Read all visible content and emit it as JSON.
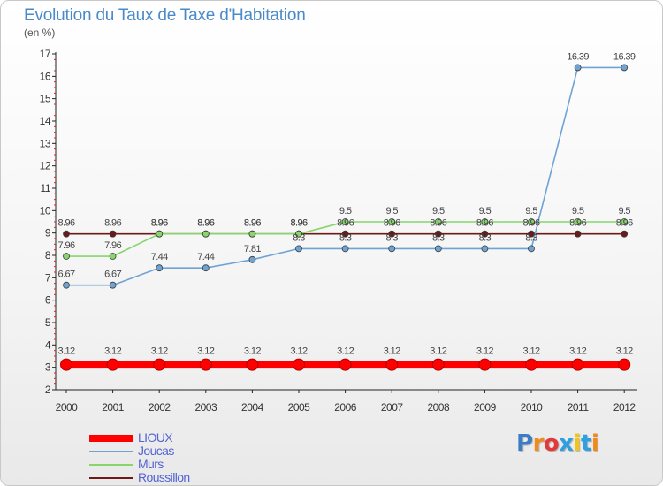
{
  "header": {
    "title": "Evolution du Taux de Taxe d'Habitation",
    "subtitle": "(en %)"
  },
  "chart_data": {
    "type": "line",
    "title": "Evolution du Taux de Taxe d'Habitation",
    "subtitle": "(en %)",
    "xlabel": "",
    "ylabel": "",
    "x": [
      2000,
      2001,
      2002,
      2003,
      2004,
      2005,
      2006,
      2007,
      2008,
      2009,
      2010,
      2011,
      2012
    ],
    "ylim": [
      2,
      17
    ],
    "yticks": [
      2,
      3,
      4,
      5,
      6,
      7,
      8,
      9,
      10,
      11,
      12,
      13,
      14,
      15,
      16,
      17
    ],
    "grid": "none",
    "legend_position": "bottom-left",
    "series": [
      {
        "name": "Roussillon",
        "color": "#6b1a1a",
        "values": [
          8.96,
          8.96,
          8.96,
          8.96,
          8.96,
          8.96,
          8.96,
          8.96,
          8.96,
          8.96,
          8.96,
          8.96,
          8.96
        ],
        "labels": [
          "8.96",
          "8.96",
          "8.96",
          "8.96",
          "8.96",
          "8.96",
          "8.96",
          "8.96",
          "8.96",
          "8.96",
          "8.96",
          "8.96",
          "8.96"
        ]
      },
      {
        "name": "Murs",
        "color": "#86d66b",
        "values": [
          7.96,
          7.96,
          8.96,
          8.96,
          8.96,
          8.96,
          9.5,
          9.5,
          9.5,
          9.5,
          9.5,
          9.5,
          9.5
        ],
        "labels": [
          "7.96",
          "7.96",
          "8.96",
          "8.96",
          "8.96",
          "8.96",
          "9.5",
          "9.5",
          "9.5",
          "9.5",
          "9.5",
          "9.5",
          "9.5"
        ]
      },
      {
        "name": "Joucas",
        "color": "#6fa3d4",
        "values": [
          6.67,
          6.67,
          7.44,
          7.44,
          7.81,
          8.3,
          8.3,
          8.3,
          8.3,
          8.3,
          8.3,
          16.39,
          16.39
        ],
        "labels": [
          "6.67",
          "6.67",
          "7.44",
          "7.44",
          "7.81",
          "8.3",
          "8.3",
          "8.3",
          "8.3",
          "8.3",
          "8.3",
          "16.39",
          "16.39"
        ]
      },
      {
        "name": "LIOUX",
        "color": "#ff0000",
        "values": [
          3.12,
          3.12,
          3.12,
          3.12,
          3.12,
          3.12,
          3.12,
          3.12,
          3.12,
          3.12,
          3.12,
          3.12,
          3.12
        ],
        "labels": [
          "3.12",
          "3.12",
          "3.12",
          "3.12",
          "3.12",
          "3.12",
          "3.12",
          "3.12",
          "3.12",
          "3.12",
          "3.12",
          "3.12",
          "3.12"
        ]
      }
    ]
  },
  "legend": {
    "items": [
      {
        "name": "LIOUX",
        "color": "#ff0000",
        "weight": "thick"
      },
      {
        "name": "Joucas",
        "color": "#6fa3d4",
        "weight": "thin"
      },
      {
        "name": "Murs",
        "color": "#86d66b",
        "weight": "thin"
      },
      {
        "name": "Roussillon",
        "color": "#6b1a1a",
        "weight": "thin"
      }
    ]
  },
  "logo": {
    "text": "Proxiti",
    "letter_colors": [
      "#3a7dc4",
      "#f08a1a",
      "#e23a3a",
      "#2e9fe0",
      "#f0c419",
      "#2e9fe0",
      "#f08a1a"
    ]
  }
}
